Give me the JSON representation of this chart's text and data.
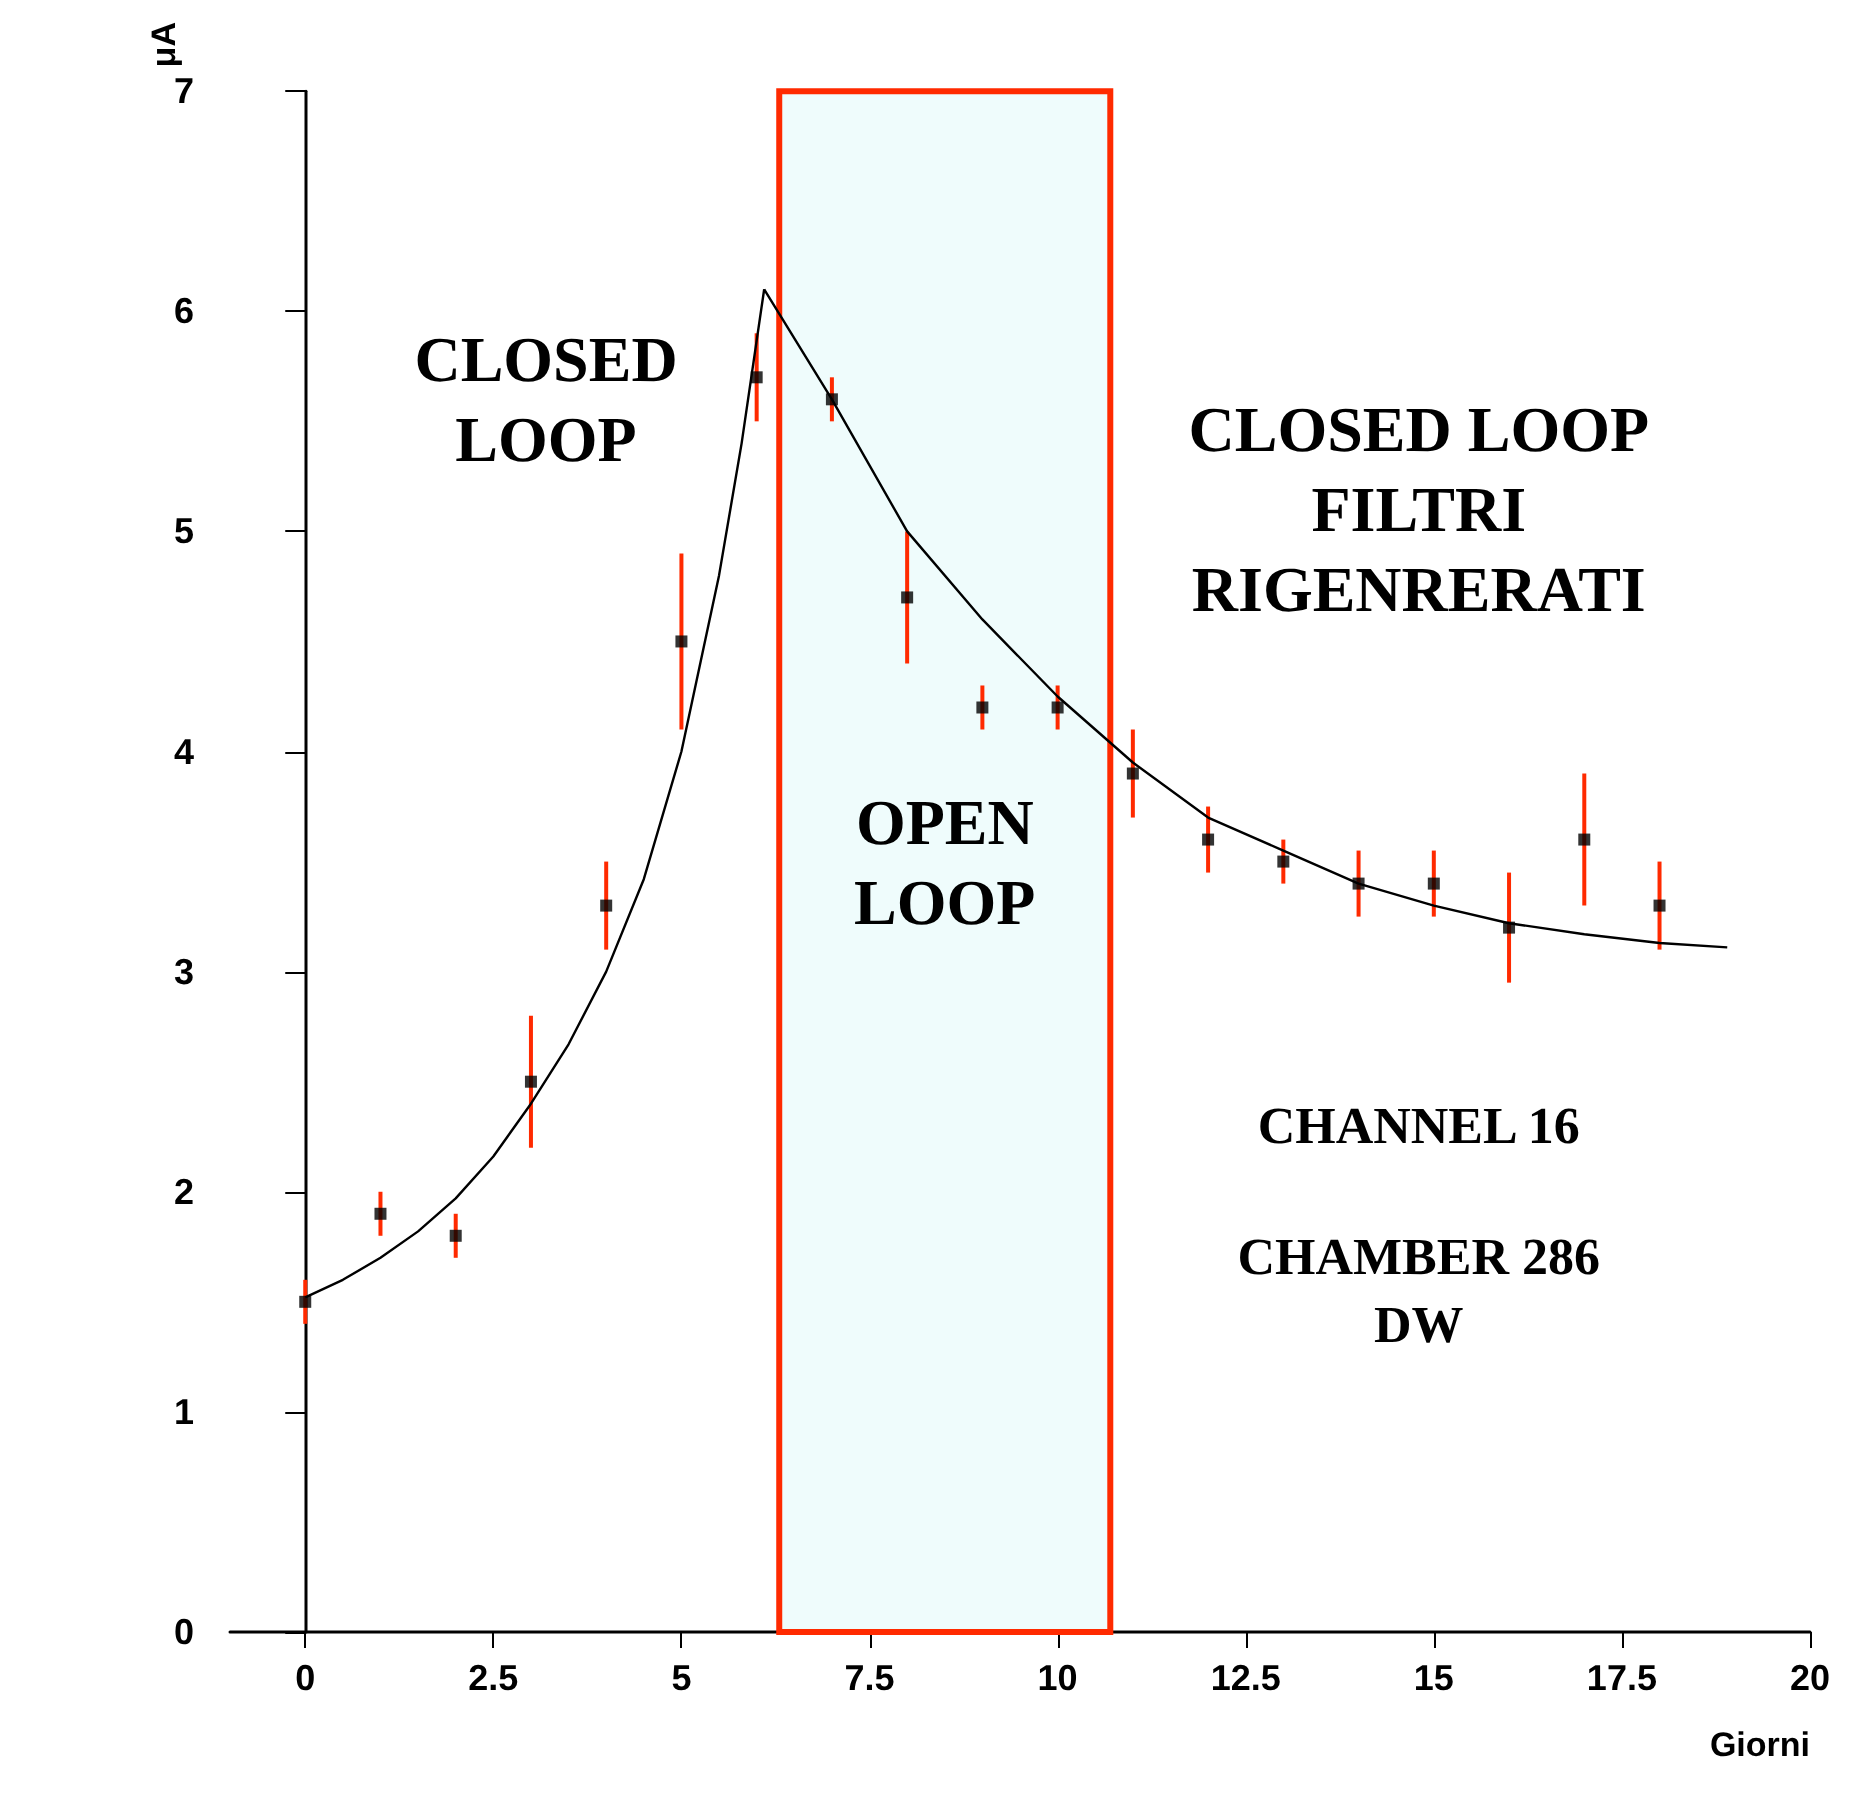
{
  "chart_data": {
    "type": "scatter",
    "xlabel": "Giorni",
    "ylabel": "μA",
    "xlim": [
      -1,
      20
    ],
    "xticks": [
      0,
      2.5,
      5,
      7.5,
      10,
      12.5,
      15,
      17.5,
      20
    ],
    "ylim": [
      0,
      7
    ],
    "yticks": [
      0,
      1,
      2,
      3,
      4,
      5,
      6,
      7
    ],
    "marker": "square",
    "series": [
      {
        "color": "#000000",
        "x": [
          0,
          1,
          2,
          3,
          4,
          5,
          6,
          7,
          8,
          9,
          10,
          11,
          12,
          13,
          14,
          15,
          16,
          17,
          18
        ],
        "values": [
          1.5,
          1.9,
          1.8,
          2.5,
          3.3,
          4.5,
          5.7,
          5.6,
          4.7,
          4.2,
          4.2,
          3.9,
          3.6,
          3.5,
          3.4,
          3.4,
          3.2,
          3.6,
          3.3
        ],
        "errors": [
          0.1,
          0.1,
          0.1,
          0.3,
          0.2,
          0.4,
          0.2,
          0.1,
          0.3,
          0.1,
          0.1,
          0.2,
          0.15,
          0.1,
          0.15,
          0.15,
          0.25,
          0.3,
          0.2
        ]
      },
      {
        "type": "line",
        "color": "#000000",
        "marker": "none",
        "x": [
          0,
          0.5,
          1,
          1.5,
          2,
          2.5,
          3,
          3.5,
          4,
          4.5,
          5,
          5.5,
          5.8,
          6.1
        ],
        "values": [
          1.52,
          1.6,
          1.7,
          1.82,
          1.97,
          2.16,
          2.4,
          2.67,
          3.0,
          3.42,
          4.0,
          4.8,
          5.4,
          6.1
        ]
      },
      {
        "type": "line",
        "color": "#000000",
        "marker": "none",
        "x": [
          6.1,
          7,
          8,
          9,
          10,
          11,
          12,
          13,
          14,
          15,
          16,
          17,
          18,
          18.9
        ],
        "values": [
          6.1,
          5.6,
          5.0,
          4.6,
          4.25,
          3.95,
          3.7,
          3.55,
          3.4,
          3.3,
          3.22,
          3.17,
          3.13,
          3.11
        ]
      }
    ],
    "bands": [
      {
        "axis": "x",
        "from": 6.3,
        "to": 10.7,
        "label": "OPEN\nLOOP",
        "color": "#effcfc"
      }
    ],
    "annotations": [
      "CLOSED\nLOOP",
      "CLOSED LOOP\nFILTRI\nRIGENRERATI",
      "CHANNEL 16",
      "CHAMBER 286\nDW"
    ]
  }
}
